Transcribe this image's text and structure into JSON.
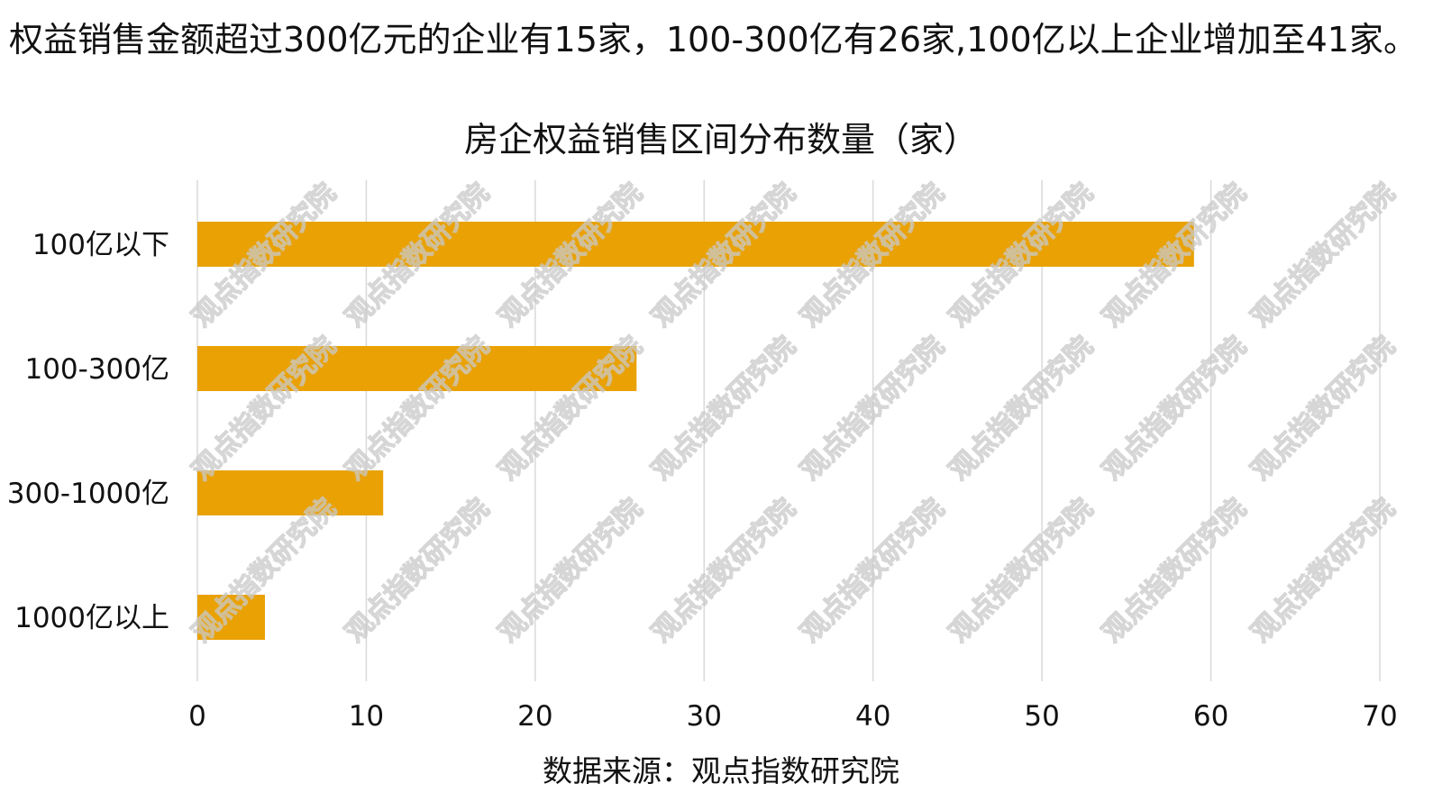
{
  "headline": "权益销售金额超过300亿元的企业有15家，100-300亿有26家,100亿以上企业增加至41家。",
  "source": "数据来源：观点指数研究院",
  "watermark": "观点指数研究院",
  "colors": {
    "bar": "#E9A104",
    "grid": "#d9d9d9",
    "text": "#111111"
  },
  "chart_data": {
    "type": "bar",
    "orientation": "horizontal",
    "title": "房企权益销售区间分布数量（家）",
    "categories": [
      "100亿以下",
      "100-300亿",
      "300-1000亿",
      "1000亿以上"
    ],
    "values": [
      59,
      26,
      11,
      4
    ],
    "xlim": [
      0,
      70
    ],
    "xticks": [
      0,
      10,
      20,
      30,
      40,
      50,
      60,
      70
    ],
    "xlabel": "",
    "ylabel": "",
    "grid": "vertical"
  }
}
